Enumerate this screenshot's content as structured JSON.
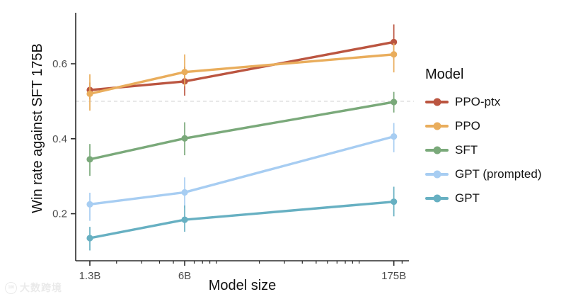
{
  "watermark": {
    "logo": "100",
    "text": "大数跨境"
  },
  "chart_data": {
    "type": "line",
    "title": "",
    "xlabel": "Model size",
    "ylabel": "Win rate against SFT 175B",
    "x_scale": "log",
    "categories": [
      "1.3B",
      "6B",
      "175B"
    ],
    "x_values": [
      1.3,
      6,
      175
    ],
    "x_minor_ticks": [
      2,
      3,
      4,
      5,
      7,
      8,
      9,
      10,
      20,
      30,
      40,
      50,
      60,
      70,
      80,
      90,
      100,
      200
    ],
    "y_ticks": [
      0.2,
      0.4,
      0.6
    ],
    "ylim": [
      0.074,
      0.736
    ],
    "reference_line": 0.5,
    "grid": "off",
    "legend_position": "right",
    "legend_title": "Model",
    "colors": {
      "axis": "#2b2b2b",
      "tick_label": "#4d4d4d",
      "reference_line": "#dcdcdc"
    },
    "series": [
      {
        "name": "PPO-ptx",
        "color": "#bb5540",
        "values": [
          0.53,
          0.553,
          0.658
        ],
        "err_low": [
          0.505,
          0.515,
          0.612
        ],
        "err_high": [
          0.55,
          0.592,
          0.705
        ]
      },
      {
        "name": "PPO",
        "color": "#e9ad5c",
        "values": [
          0.52,
          0.578,
          0.625
        ],
        "err_low": [
          0.475,
          0.54,
          0.577
        ],
        "err_high": [
          0.572,
          0.625,
          0.655
        ]
      },
      {
        "name": "SFT",
        "color": "#7aa97a",
        "values": [
          0.345,
          0.401,
          0.498
        ],
        "err_low": [
          0.301,
          0.356,
          0.47
        ],
        "err_high": [
          0.386,
          0.444,
          0.525
        ]
      },
      {
        "name": "GPT (prompted)",
        "color": "#a7cdf2",
        "values": [
          0.225,
          0.257,
          0.406
        ],
        "err_low": [
          0.181,
          0.215,
          0.364
        ],
        "err_high": [
          0.256,
          0.297,
          0.442
        ]
      },
      {
        "name": "GPT",
        "color": "#67b0c2",
        "values": [
          0.135,
          0.184,
          0.232
        ],
        "err_low": [
          0.102,
          0.152,
          0.193
        ],
        "err_high": [
          0.165,
          0.222,
          0.272
        ]
      }
    ]
  }
}
